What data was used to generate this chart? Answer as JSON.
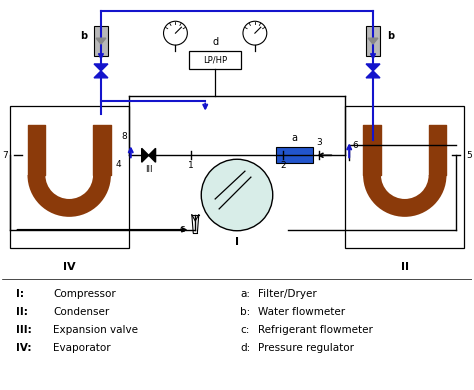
{
  "bg_color": "#ffffff",
  "black": "#000000",
  "blue": "#1414cc",
  "brown": "#8B3A0A",
  "comp_fill": "#d8ede8",
  "filter_fill": "#2255cc",
  "gray_light": "#b8b8b8",
  "gray_dark": "#888888",
  "legend_left": [
    [
      "I:",
      "Compressor"
    ],
    [
      "II:",
      "Condenser"
    ],
    [
      "III:",
      "Expansion valve"
    ],
    [
      "IV:",
      "Evaporator"
    ]
  ],
  "legend_right": [
    [
      "a:",
      "Filter/Dryer"
    ],
    [
      "b:",
      "Water flowmeter"
    ],
    [
      "c:",
      "Refrigerant flowmeter"
    ],
    [
      "d:",
      "Pressure regulator"
    ]
  ]
}
